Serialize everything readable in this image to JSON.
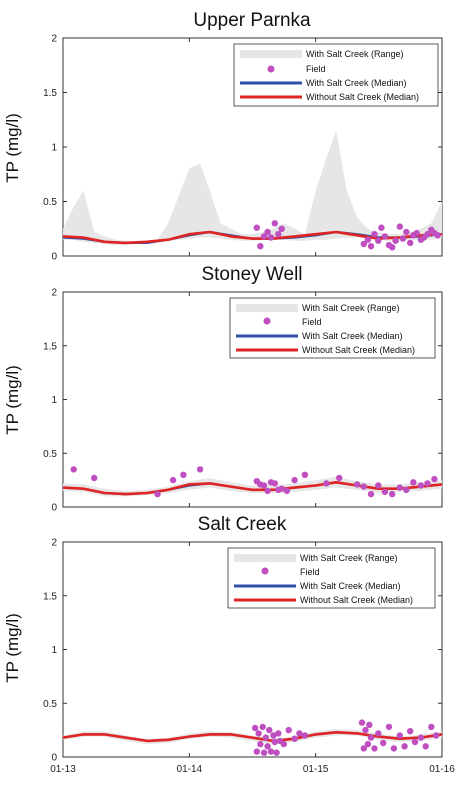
{
  "chart_data": [
    {
      "type": "line",
      "title": "Upper Parnka",
      "ylabel": "TP (mg/l)",
      "xlim": [
        "2013-01-01",
        "2016-01-01"
      ],
      "ylim": [
        0,
        2
      ],
      "yticks": [
        0,
        0.5,
        1,
        1.5,
        2
      ],
      "ytick_labels": [
        "0",
        "0.5",
        "1",
        "1.5",
        "2"
      ],
      "xticks": [
        "2013-01-01",
        "2014-01-01",
        "2015-01-01",
        "2016-01-01"
      ],
      "xtick_labels": [],
      "legend": {
        "placement": "top-right",
        "entries": [
          "With Salt Creek (Range)",
          "Field",
          "With Salt Creek (Median)",
          "Without Salt Creek (Median)"
        ]
      },
      "colors": {
        "range": "#e6e6e6",
        "field": "#bf4fc0",
        "with_median": "#2e4fa3",
        "without_median": "#e02323"
      },
      "series": [
        {
          "name": "With Salt Creek (Range)",
          "kind": "band",
          "x": [
            "2013-01-01",
            "2013-02-01",
            "2013-03-01",
            "2013-04-01",
            "2013-05-01",
            "2013-06-01",
            "2013-07-01",
            "2013-08-01",
            "2013-09-01",
            "2013-10-01",
            "2013-11-01",
            "2013-12-01",
            "2014-01-01",
            "2014-02-01",
            "2014-03-01",
            "2014-04-01",
            "2014-05-01",
            "2014-06-01",
            "2014-07-01",
            "2014-08-01",
            "2014-09-01",
            "2014-10-01",
            "2014-11-01",
            "2014-12-01",
            "2015-01-01",
            "2015-02-01",
            "2015-03-01",
            "2015-04-01",
            "2015-05-01",
            "2015-06-01",
            "2015-07-01",
            "2015-08-01",
            "2015-09-01",
            "2015-10-01",
            "2015-11-01",
            "2015-12-01",
            "2016-01-01"
          ],
          "lower": [
            0.15,
            0.15,
            0.13,
            0.12,
            0.11,
            0.1,
            0.1,
            0.11,
            0.12,
            0.13,
            0.14,
            0.15,
            0.16,
            0.17,
            0.17,
            0.16,
            0.15,
            0.14,
            0.14,
            0.15,
            0.15,
            0.15,
            0.14,
            0.14,
            0.15,
            0.15,
            0.16,
            0.17,
            0.17,
            0.16,
            0.15,
            0.14,
            0.14,
            0.15,
            0.15,
            0.15,
            0.17
          ],
          "upper": [
            0.25,
            0.45,
            0.6,
            0.22,
            0.18,
            0.15,
            0.14,
            0.13,
            0.14,
            0.15,
            0.3,
            0.55,
            0.8,
            0.85,
            0.6,
            0.3,
            0.25,
            0.2,
            0.2,
            0.22,
            0.25,
            0.3,
            0.25,
            0.2,
            0.6,
            0.9,
            1.15,
            0.6,
            0.35,
            0.25,
            0.22,
            0.2,
            0.2,
            0.22,
            0.25,
            0.3,
            0.5
          ]
        },
        {
          "name": "With Salt Creek (Median)",
          "x": [
            "2013-01-01",
            "2013-03-01",
            "2013-05-01",
            "2013-07-01",
            "2013-09-01",
            "2013-11-01",
            "2014-01-01",
            "2014-03-01",
            "2014-05-01",
            "2014-07-01",
            "2014-09-01",
            "2014-11-01",
            "2015-01-01",
            "2015-03-01",
            "2015-05-01",
            "2015-07-01",
            "2015-09-01",
            "2015-11-01",
            "2016-01-01"
          ],
          "y": [
            0.17,
            0.16,
            0.13,
            0.12,
            0.12,
            0.15,
            0.19,
            0.22,
            0.19,
            0.16,
            0.16,
            0.17,
            0.19,
            0.22,
            0.2,
            0.17,
            0.17,
            0.18,
            0.2
          ]
        },
        {
          "name": "Without Salt Creek (Median)",
          "x": [
            "2013-01-01",
            "2013-03-01",
            "2013-05-01",
            "2013-07-01",
            "2013-09-01",
            "2013-11-01",
            "2014-01-01",
            "2014-03-01",
            "2014-05-01",
            "2014-07-01",
            "2014-09-01",
            "2014-11-01",
            "2015-01-01",
            "2015-03-01",
            "2015-05-01",
            "2015-07-01",
            "2015-09-01",
            "2015-11-01",
            "2016-01-01"
          ],
          "y": [
            0.18,
            0.17,
            0.13,
            0.12,
            0.13,
            0.15,
            0.2,
            0.22,
            0.18,
            0.16,
            0.16,
            0.18,
            0.2,
            0.22,
            0.19,
            0.16,
            0.17,
            0.19,
            0.2
          ]
        },
        {
          "name": "Field",
          "kind": "scatter",
          "x": [
            "2014-07-15",
            "2014-07-25",
            "2014-08-05",
            "2014-08-15",
            "2014-08-25",
            "2014-09-05",
            "2014-09-15",
            "2014-09-25",
            "2015-05-20",
            "2015-06-01",
            "2015-06-10",
            "2015-06-20",
            "2015-07-01",
            "2015-07-10",
            "2015-07-20",
            "2015-08-01",
            "2015-08-10",
            "2015-08-20",
            "2015-09-01",
            "2015-09-10",
            "2015-09-20",
            "2015-10-01",
            "2015-10-10",
            "2015-10-20",
            "2015-11-01",
            "2015-11-10",
            "2015-11-20",
            "2015-12-01",
            "2015-12-10",
            "2015-12-20"
          ],
          "y": [
            0.26,
            0.09,
            0.18,
            0.22,
            0.17,
            0.3,
            0.2,
            0.25,
            0.11,
            0.15,
            0.09,
            0.2,
            0.14,
            0.26,
            0.18,
            0.1,
            0.08,
            0.14,
            0.27,
            0.16,
            0.22,
            0.12,
            0.19,
            0.21,
            0.15,
            0.17,
            0.2,
            0.24,
            0.21,
            0.19
          ]
        }
      ]
    },
    {
      "type": "line",
      "title": "Stoney Well",
      "ylabel": "TP (mg/l)",
      "xlim": [
        "2013-01-01",
        "2016-01-01"
      ],
      "ylim": [
        0,
        2
      ],
      "yticks": [
        0,
        0.5,
        1,
        1.5,
        2
      ],
      "ytick_labels": [
        "0",
        "0.5",
        "1",
        "1.5",
        "2"
      ],
      "xticks": [
        "2013-01-01",
        "2014-01-01",
        "2015-01-01",
        "2016-01-01"
      ],
      "xtick_labels": [],
      "legend": {
        "placement": "top-right",
        "entries": [
          "With Salt Creek (Range)",
          "Field",
          "With Salt Creek (Median)",
          "Without Salt Creek (Median)"
        ]
      },
      "colors": {
        "range": "#e6e6e6",
        "field": "#bf4fc0",
        "with_median": "#2e4fa3",
        "without_median": "#e02323"
      },
      "series": [
        {
          "name": "With Salt Creek (Range)",
          "kind": "band",
          "x": [
            "2013-01-01",
            "2013-03-01",
            "2013-05-01",
            "2013-07-01",
            "2013-09-01",
            "2013-11-01",
            "2014-01-01",
            "2014-03-01",
            "2014-05-01",
            "2014-07-01",
            "2014-09-01",
            "2014-11-01",
            "2015-01-01",
            "2015-03-01",
            "2015-05-01",
            "2015-07-01",
            "2015-09-01",
            "2015-11-01",
            "2016-01-01"
          ],
          "lower": [
            0.15,
            0.14,
            0.1,
            0.1,
            0.11,
            0.13,
            0.16,
            0.18,
            0.15,
            0.13,
            0.13,
            0.14,
            0.16,
            0.18,
            0.16,
            0.13,
            0.14,
            0.15,
            0.17
          ],
          "upper": [
            0.22,
            0.21,
            0.17,
            0.15,
            0.16,
            0.19,
            0.24,
            0.27,
            0.23,
            0.2,
            0.2,
            0.22,
            0.25,
            0.28,
            0.24,
            0.21,
            0.21,
            0.23,
            0.25
          ]
        },
        {
          "name": "With Salt Creek (Median)",
          "x": [
            "2013-01-01",
            "2013-03-01",
            "2013-05-01",
            "2013-07-01",
            "2013-09-01",
            "2013-11-01",
            "2014-01-01",
            "2014-03-01",
            "2014-05-01",
            "2014-07-01",
            "2014-09-01",
            "2014-11-01",
            "2015-01-01",
            "2015-03-01",
            "2015-05-01",
            "2015-07-01",
            "2015-09-01",
            "2015-11-01",
            "2016-01-01"
          ],
          "y": [
            0.18,
            0.17,
            0.13,
            0.12,
            0.13,
            0.16,
            0.2,
            0.22,
            0.19,
            0.16,
            0.16,
            0.18,
            0.2,
            0.23,
            0.2,
            0.17,
            0.17,
            0.19,
            0.21
          ]
        },
        {
          "name": "Without Salt Creek (Median)",
          "x": [
            "2013-01-01",
            "2013-03-01",
            "2013-05-01",
            "2013-07-01",
            "2013-09-01",
            "2013-11-01",
            "2014-01-01",
            "2014-03-01",
            "2014-05-01",
            "2014-07-01",
            "2014-09-01",
            "2014-11-01",
            "2015-01-01",
            "2015-03-01",
            "2015-05-01",
            "2015-07-01",
            "2015-09-01",
            "2015-11-01",
            "2016-01-01"
          ],
          "y": [
            0.18,
            0.17,
            0.13,
            0.12,
            0.13,
            0.16,
            0.21,
            0.22,
            0.19,
            0.16,
            0.16,
            0.18,
            0.2,
            0.23,
            0.2,
            0.17,
            0.17,
            0.19,
            0.21
          ]
        },
        {
          "name": "Field",
          "kind": "scatter",
          "x": [
            "2013-02-01",
            "2013-04-01",
            "2013-10-01",
            "2013-11-15",
            "2013-12-15",
            "2014-02-01",
            "2014-07-15",
            "2014-07-25",
            "2014-08-05",
            "2014-08-15",
            "2014-08-25",
            "2014-09-05",
            "2014-09-15",
            "2014-09-25",
            "2014-10-10",
            "2014-11-01",
            "2014-12-01",
            "2015-02-01",
            "2015-03-10",
            "2015-05-01",
            "2015-05-20",
            "2015-06-10",
            "2015-07-01",
            "2015-07-20",
            "2015-08-10",
            "2015-09-01",
            "2015-09-20",
            "2015-10-10",
            "2015-11-01",
            "2015-11-20",
            "2015-12-10"
          ],
          "y": [
            0.35,
            0.27,
            0.12,
            0.25,
            0.3,
            0.35,
            0.24,
            0.21,
            0.2,
            0.15,
            0.23,
            0.22,
            0.16,
            0.17,
            0.15,
            0.25,
            0.3,
            0.22,
            0.27,
            0.21,
            0.19,
            0.12,
            0.2,
            0.14,
            0.12,
            0.18,
            0.16,
            0.23,
            0.2,
            0.22,
            0.26
          ]
        }
      ]
    },
    {
      "type": "line",
      "title": "Salt Creek",
      "ylabel": "TP (mg/l)",
      "xlim": [
        "2013-01-01",
        "2016-01-01"
      ],
      "ylim": [
        0,
        2
      ],
      "yticks": [
        0,
        0.5,
        1,
        1.5,
        2
      ],
      "ytick_labels": [
        "0",
        "0.5",
        "1",
        "1.5",
        "2"
      ],
      "xticks": [
        "2013-01-01",
        "2014-01-01",
        "2015-01-01",
        "2016-01-01"
      ],
      "xtick_labels": [
        "01-13",
        "01-14",
        "01-15",
        "01-16"
      ],
      "legend": {
        "placement": "top-right",
        "entries": [
          "With Salt Creek (Range)",
          "Field",
          "With Salt Creek (Median)",
          "Without Salt Creek (Median)"
        ]
      },
      "colors": {
        "range": "#e6e6e6",
        "field": "#bf4fc0",
        "with_median": "#2e4fa3",
        "without_median": "#e02323"
      },
      "series": [
        {
          "name": "With Salt Creek (Range)",
          "kind": "band",
          "x": [
            "2013-01-01",
            "2013-03-01",
            "2013-05-01",
            "2013-07-01",
            "2013-09-01",
            "2013-11-01",
            "2014-01-01",
            "2014-03-01",
            "2014-05-01",
            "2014-07-01",
            "2014-09-01",
            "2014-11-01",
            "2015-01-01",
            "2015-03-01",
            "2015-05-01",
            "2015-07-01",
            "2015-09-01",
            "2015-11-01",
            "2016-01-01"
          ],
          "lower": [
            0.16,
            0.19,
            0.19,
            0.15,
            0.12,
            0.13,
            0.17,
            0.19,
            0.18,
            0.15,
            0.12,
            0.14,
            0.18,
            0.2,
            0.2,
            0.16,
            0.14,
            0.15,
            0.18
          ],
          "upper": [
            0.2,
            0.24,
            0.24,
            0.2,
            0.17,
            0.18,
            0.22,
            0.24,
            0.23,
            0.2,
            0.17,
            0.19,
            0.24,
            0.26,
            0.25,
            0.22,
            0.19,
            0.21,
            0.24
          ]
        },
        {
          "name": "With Salt Creek (Median)",
          "x": [
            "2013-01-01",
            "2013-03-01",
            "2013-05-01",
            "2013-07-01",
            "2013-09-01",
            "2013-11-01",
            "2014-01-01",
            "2014-03-01",
            "2014-05-01",
            "2014-07-01",
            "2014-09-01",
            "2014-11-01",
            "2015-01-01",
            "2015-03-01",
            "2015-05-01",
            "2015-07-01",
            "2015-09-01",
            "2015-11-01",
            "2016-01-01"
          ],
          "y": [
            0.18,
            0.21,
            0.21,
            0.18,
            0.15,
            0.16,
            0.19,
            0.21,
            0.21,
            0.18,
            0.15,
            0.17,
            0.21,
            0.23,
            0.22,
            0.19,
            0.17,
            0.18,
            0.21
          ]
        },
        {
          "name": "Without Salt Creek (Median)",
          "x": [
            "2013-01-01",
            "2013-03-01",
            "2013-05-01",
            "2013-07-01",
            "2013-09-01",
            "2013-11-01",
            "2014-01-01",
            "2014-03-01",
            "2014-05-01",
            "2014-07-01",
            "2014-09-01",
            "2014-11-01",
            "2015-01-01",
            "2015-03-01",
            "2015-05-01",
            "2015-07-01",
            "2015-09-01",
            "2015-11-01",
            "2016-01-01"
          ],
          "y": [
            0.18,
            0.21,
            0.21,
            0.18,
            0.15,
            0.16,
            0.19,
            0.21,
            0.21,
            0.18,
            0.15,
            0.17,
            0.21,
            0.23,
            0.22,
            0.19,
            0.17,
            0.18,
            0.21
          ]
        },
        {
          "name": "Field",
          "kind": "scatter",
          "x": [
            "2014-07-10",
            "2014-07-15",
            "2014-07-20",
            "2014-07-25",
            "2014-08-01",
            "2014-08-05",
            "2014-08-10",
            "2014-08-15",
            "2014-08-20",
            "2014-08-25",
            "2014-09-01",
            "2014-09-05",
            "2014-09-10",
            "2014-09-15",
            "2014-09-20",
            "2014-10-01",
            "2014-10-15",
            "2014-11-01",
            "2014-11-15",
            "2014-12-01",
            "2015-05-15",
            "2015-05-20",
            "2015-05-25",
            "2015-06-01",
            "2015-06-05",
            "2015-06-10",
            "2015-06-20",
            "2015-07-01",
            "2015-07-15",
            "2015-08-01",
            "2015-08-15",
            "2015-09-01",
            "2015-09-15",
            "2015-10-01",
            "2015-10-15",
            "2015-11-01",
            "2015-11-15",
            "2015-12-01",
            "2015-12-15"
          ],
          "y": [
            0.27,
            0.05,
            0.22,
            0.12,
            0.28,
            0.04,
            0.18,
            0.1,
            0.25,
            0.05,
            0.2,
            0.14,
            0.04,
            0.22,
            0.15,
            0.12,
            0.25,
            0.17,
            0.22,
            0.2,
            0.32,
            0.08,
            0.25,
            0.12,
            0.3,
            0.18,
            0.08,
            0.22,
            0.13,
            0.28,
            0.08,
            0.2,
            0.1,
            0.24,
            0.14,
            0.18,
            0.1,
            0.28,
            0.2
          ]
        }
      ]
    }
  ]
}
